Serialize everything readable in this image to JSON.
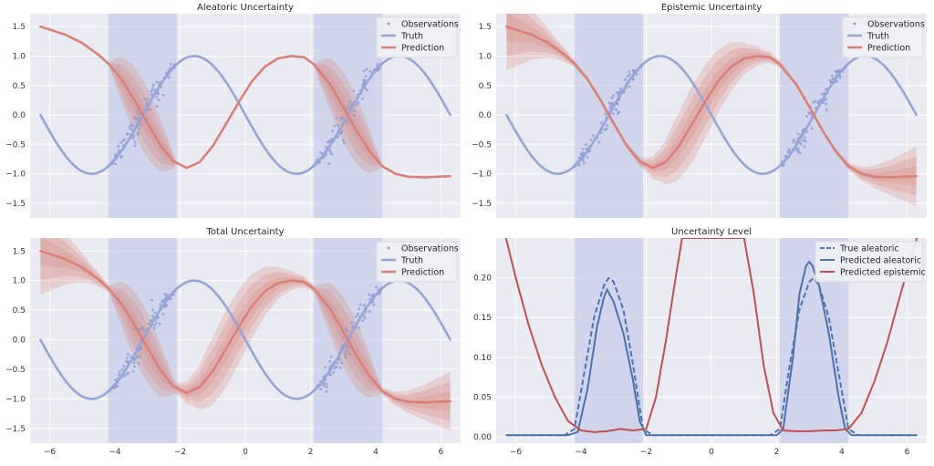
{
  "chart_data": [
    {
      "type": "line",
      "title": "Aleatoric Uncertainty",
      "xlim": [
        -6.6,
        6.6
      ],
      "ylim": [
        -1.75,
        1.72
      ],
      "xticks": [
        -6,
        -4,
        -2,
        0,
        2,
        4,
        6
      ],
      "yticks": [
        -1.5,
        -1.0,
        -0.5,
        0.0,
        0.5,
        1.0,
        1.5
      ],
      "ytick_labels": [
        "−1.5",
        "−1.0",
        "−0.5",
        "0.0",
        "0.5",
        "1.0",
        "1.5"
      ],
      "shaded_x_ranges": [
        [
          -4.2,
          -2.1
        ],
        [
          2.1,
          4.2
        ]
      ],
      "legend": {
        "position": "top-right",
        "entries": [
          "Observations",
          "Truth",
          "Prediction"
        ]
      },
      "truth": {
        "name": "Truth",
        "function": "sin(x + pi)",
        "x_range": [
          -6.28,
          6.28
        ]
      },
      "prediction": {
        "name": "Prediction",
        "x": [
          -6.28,
          -5.5,
          -5.0,
          -4.5,
          -4.2,
          -3.8,
          -3.4,
          -3.0,
          -2.6,
          -2.2,
          -1.8,
          -1.4,
          -1.0,
          -0.6,
          -0.2,
          0.2,
          0.6,
          1.0,
          1.4,
          1.8,
          2.1,
          2.6,
          3.0,
          3.4,
          3.8,
          4.2,
          4.6,
          5.0,
          5.5,
          6.28
        ],
        "y": [
          1.5,
          1.36,
          1.22,
          1.02,
          0.87,
          0.61,
          0.25,
          -0.14,
          -0.52,
          -0.79,
          -0.9,
          -0.8,
          -0.53,
          -0.16,
          0.22,
          0.57,
          0.82,
          0.96,
          1.0,
          0.98,
          0.86,
          0.52,
          0.14,
          -0.26,
          -0.61,
          -0.87,
          -1.0,
          -1.05,
          -1.06,
          -1.04
        ]
      },
      "bands": {
        "x_ranges": [
          [
            -4.2,
            -2.1
          ],
          [
            2.1,
            4.2
          ]
        ],
        "std_peak": 0.2,
        "peak_x": [
          -3.15,
          3.15
        ],
        "levels": [
          1,
          2,
          3
        ]
      },
      "observations": {
        "name": "Observations",
        "x_ranges": [
          [
            -4.2,
            -2.1
          ],
          [
            2.1,
            4.2
          ]
        ],
        "noise_std_peak": 0.2,
        "count_per_range": 100
      }
    },
    {
      "type": "line",
      "title": "Epistemic Uncertainty",
      "xlim": [
        -6.6,
        6.6
      ],
      "ylim": [
        -1.75,
        1.72
      ],
      "xticks": [
        -6,
        -4,
        -2,
        0,
        2,
        4,
        6
      ],
      "yticks": [
        -1.5,
        -1.0,
        -0.5,
        0.0,
        0.5,
        1.0,
        1.5
      ],
      "ytick_labels": [
        "−1.5",
        "−1.0",
        "−0.5",
        "0.0",
        "0.5",
        "1.0",
        "1.5"
      ],
      "shaded_x_ranges": [
        [
          -4.2,
          -2.1
        ],
        [
          2.1,
          4.2
        ]
      ],
      "legend": {
        "position": "top-right",
        "entries": [
          "Observations",
          "Truth",
          "Prediction"
        ]
      },
      "truth": {
        "name": "Truth",
        "function": "sin(x + pi)",
        "x_range": [
          -6.28,
          6.28
        ]
      },
      "prediction": {
        "name": "Prediction",
        "x": [
          -6.28,
          -5.5,
          -5.0,
          -4.5,
          -4.2,
          -3.8,
          -3.4,
          -3.0,
          -2.6,
          -2.2,
          -1.8,
          -1.4,
          -1.0,
          -0.6,
          -0.2,
          0.2,
          0.6,
          1.0,
          1.4,
          1.8,
          2.1,
          2.6,
          3.0,
          3.4,
          3.8,
          4.2,
          4.6,
          5.0,
          5.5,
          6.28
        ],
        "y": [
          1.5,
          1.36,
          1.22,
          1.02,
          0.87,
          0.61,
          0.25,
          -0.14,
          -0.52,
          -0.79,
          -0.9,
          -0.8,
          -0.53,
          -0.16,
          0.22,
          0.57,
          0.82,
          0.96,
          1.0,
          0.98,
          0.86,
          0.52,
          0.14,
          -0.26,
          -0.61,
          -0.87,
          -1.0,
          -1.05,
          -1.06,
          -1.04
        ]
      },
      "bands": {
        "epistemic_std": {
          "x": [
            -6.3,
            -5.5,
            -4.8,
            -4.2,
            -3.5,
            -2.8,
            -2.1,
            -1.6,
            -1.1,
            -0.6,
            0.0,
            0.6,
            1.1,
            1.6,
            2.1,
            2.8,
            3.5,
            4.2,
            4.8,
            5.5,
            6.3
          ],
          "y": [
            0.25,
            0.14,
            0.06,
            0.02,
            0.01,
            0.01,
            0.03,
            0.09,
            0.18,
            0.22,
            0.2,
            0.14,
            0.08,
            0.04,
            0.02,
            0.01,
            0.01,
            0.02,
            0.05,
            0.1,
            0.17
          ]
        },
        "levels": [
          1,
          2,
          3
        ]
      },
      "observations": {
        "name": "Observations",
        "x_ranges": [
          [
            -4.2,
            -2.1
          ],
          [
            2.1,
            4.2
          ]
        ],
        "noise_std_peak": 0.2,
        "count_per_range": 100
      }
    },
    {
      "type": "line",
      "title": "Total Uncertainty",
      "xlim": [
        -6.6,
        6.6
      ],
      "ylim": [
        -1.75,
        1.72
      ],
      "xticks": [
        -6,
        -4,
        -2,
        0,
        2,
        4,
        6
      ],
      "xtick_labels": [
        "−6",
        "−4",
        "−2",
        "0",
        "2",
        "4",
        "6"
      ],
      "yticks": [
        -1.5,
        -1.0,
        -0.5,
        0.0,
        0.5,
        1.0,
        1.5
      ],
      "ytick_labels": [
        "−1.5",
        "−1.0",
        "−0.5",
        "0.0",
        "0.5",
        "1.0",
        "1.5"
      ],
      "shaded_x_ranges": [
        [
          -4.2,
          -2.1
        ],
        [
          2.1,
          4.2
        ]
      ],
      "legend": {
        "position": "top-right",
        "entries": [
          "Observations",
          "Truth",
          "Prediction"
        ]
      },
      "truth": {
        "name": "Truth",
        "function": "sin(x + pi)",
        "x_range": [
          -6.28,
          6.28
        ]
      },
      "prediction": {
        "name": "Prediction",
        "x": [
          -6.28,
          -5.5,
          -5.0,
          -4.5,
          -4.2,
          -3.8,
          -3.4,
          -3.0,
          -2.6,
          -2.2,
          -1.8,
          -1.4,
          -1.0,
          -0.6,
          -0.2,
          0.2,
          0.6,
          1.0,
          1.4,
          1.8,
          2.1,
          2.6,
          3.0,
          3.4,
          3.8,
          4.2,
          4.6,
          5.0,
          5.5,
          6.28
        ],
        "y": [
          1.5,
          1.36,
          1.22,
          1.02,
          0.87,
          0.61,
          0.25,
          -0.14,
          -0.52,
          -0.79,
          -0.9,
          -0.8,
          -0.53,
          -0.16,
          0.22,
          0.57,
          0.82,
          0.96,
          1.0,
          0.98,
          0.86,
          0.52,
          0.14,
          -0.26,
          -0.61,
          -0.87,
          -1.0,
          -1.05,
          -1.06,
          -1.04
        ]
      },
      "bands": {
        "combined": "sqrt(aleatoric^2 + epistemic^2)",
        "levels": [
          1,
          2,
          3
        ]
      },
      "observations": {
        "name": "Observations",
        "x_ranges": [
          [
            -4.2,
            -2.1
          ],
          [
            2.1,
            4.2
          ]
        ],
        "noise_std_peak": 0.2,
        "count_per_range": 100
      }
    },
    {
      "type": "line",
      "title": "Uncertainty Level",
      "xlim": [
        -6.6,
        6.6
      ],
      "ylim": [
        -0.008,
        0.25
      ],
      "xticks": [
        -6,
        -4,
        -2,
        0,
        2,
        4,
        6
      ],
      "xtick_labels": [
        "−6",
        "−4",
        "−2",
        "0",
        "2",
        "4",
        "6"
      ],
      "yticks": [
        0.0,
        0.05,
        0.1,
        0.15,
        0.2
      ],
      "ytick_labels": [
        "0.00",
        "0.05",
        "0.10",
        "0.15",
        "0.20"
      ],
      "shaded_x_ranges": [
        [
          -4.2,
          -2.1
        ],
        [
          2.1,
          4.2
        ]
      ],
      "legend": {
        "position": "top-right",
        "entries": [
          "True aleatoric",
          "Predicted aleatoric",
          "Predicted epistemic"
        ]
      },
      "series": [
        {
          "name": "True aleatoric",
          "style": "dashed",
          "x": [
            -6.3,
            -4.5,
            -4.2,
            -3.9,
            -3.6,
            -3.3,
            -3.15,
            -3.0,
            -2.7,
            -2.4,
            -2.1,
            -1.8,
            1.8,
            2.1,
            2.4,
            2.7,
            3.0,
            3.15,
            3.3,
            3.6,
            3.9,
            4.2,
            4.5,
            6.3
          ],
          "y": [
            0.002,
            0.002,
            0.01,
            0.08,
            0.15,
            0.19,
            0.2,
            0.195,
            0.16,
            0.09,
            0.01,
            0.002,
            0.002,
            0.01,
            0.09,
            0.16,
            0.195,
            0.2,
            0.19,
            0.15,
            0.08,
            0.01,
            0.002,
            0.002
          ]
        },
        {
          "name": "Predicted aleatoric",
          "style": "solid",
          "x": [
            -6.3,
            -4.4,
            -4.1,
            -3.8,
            -3.5,
            -3.3,
            -3.2,
            -3.0,
            -2.7,
            -2.4,
            -2.2,
            -2.0,
            2.0,
            2.2,
            2.5,
            2.7,
            2.9,
            3.0,
            3.1,
            3.3,
            3.6,
            3.9,
            4.1,
            4.3,
            6.3
          ],
          "y": [
            0.002,
            0.002,
            0.006,
            0.06,
            0.14,
            0.175,
            0.185,
            0.17,
            0.13,
            0.07,
            0.02,
            0.002,
            0.002,
            0.01,
            0.1,
            0.18,
            0.215,
            0.22,
            0.215,
            0.19,
            0.13,
            0.05,
            0.01,
            0.002,
            0.002
          ]
        },
        {
          "name": "Predicted epistemic",
          "style": "solid",
          "x": [
            -6.3,
            -6.0,
            -5.6,
            -5.2,
            -4.8,
            -4.4,
            -4.0,
            -3.6,
            -3.2,
            -2.8,
            -2.4,
            -2.0,
            -1.7,
            -1.4,
            -1.1,
            -0.9,
            1.0,
            1.3,
            1.6,
            1.9,
            2.2,
            2.6,
            3.0,
            3.4,
            3.8,
            4.2,
            4.6,
            5.0,
            5.4,
            5.8,
            6.3
          ],
          "y": [
            0.25,
            0.2,
            0.14,
            0.09,
            0.05,
            0.02,
            0.008,
            0.006,
            0.007,
            0.01,
            0.008,
            0.01,
            0.05,
            0.12,
            0.2,
            0.25,
            0.25,
            0.18,
            0.09,
            0.03,
            0.008,
            0.007,
            0.007,
            0.008,
            0.008,
            0.01,
            0.03,
            0.07,
            0.12,
            0.18,
            0.25
          ]
        }
      ]
    }
  ],
  "colors": {
    "background": "#eaeaf2",
    "grid": "#ffffff",
    "shade": "#c7cde8",
    "truth": "#95a5d6",
    "prediction": "#dc7f78",
    "band": "#d8877f",
    "points": "#8e99cf",
    "blue": "#4c72b0",
    "red": "#c44e52"
  }
}
